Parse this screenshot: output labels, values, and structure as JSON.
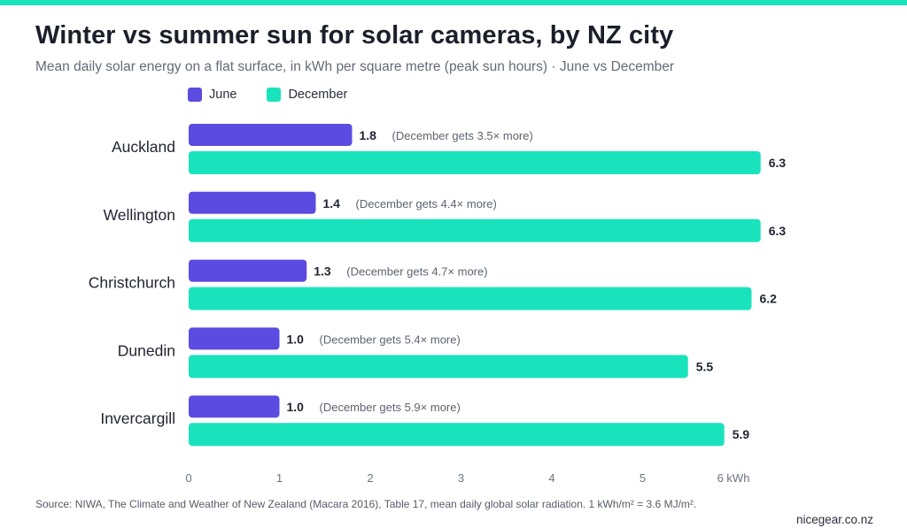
{
  "header": {
    "title": "Winter vs summer sun for solar cameras, by NZ city",
    "subtitle": "Mean daily solar energy on a flat surface, in kWh per square metre (peak sun hours) · June vs December"
  },
  "footer": {
    "source": "Source: NIWA, The Climate and Weather of New Zealand (Macara 2016), Table 17, mean daily global solar radiation. 1 kWh/m² = 3.6 MJ/m².",
    "site": "nicegear.co.nz"
  },
  "chart_data": {
    "type": "bar",
    "orientation": "horizontal",
    "title": "Winter vs summer sun for solar cameras, by NZ city",
    "subtitle": "Mean daily solar energy on a flat surface, in kWh per square metre (peak sun hours) · June vs December",
    "categories": [
      "Auckland",
      "Wellington",
      "Christchurch",
      "Dunedin",
      "Invercargill"
    ],
    "series": [
      {
        "name": "June",
        "color": "#5b4be0",
        "values": [
          1.8,
          1.4,
          1.3,
          1.0,
          1.0
        ],
        "labels": [
          "1.8",
          "1.4",
          "1.3",
          "1.0",
          "1.0"
        ]
      },
      {
        "name": "December",
        "color": "#19e3bd",
        "values": [
          6.3,
          6.3,
          6.2,
          5.5,
          5.9
        ],
        "labels": [
          "6.3",
          "6.3",
          "6.2",
          "5.5",
          "5.9"
        ]
      }
    ],
    "annotations": [
      "(December gets 3.5× more)",
      "(December gets 4.4× more)",
      "(December gets 4.7× more)",
      "(December gets 5.4× more)",
      "(December gets 5.9× more)"
    ],
    "xticks": [
      "0",
      "1",
      "2",
      "3",
      "4",
      "5",
      "6 kWh"
    ],
    "xlim": [
      0,
      6
    ],
    "legend_position": "top-left",
    "grid": false
  }
}
